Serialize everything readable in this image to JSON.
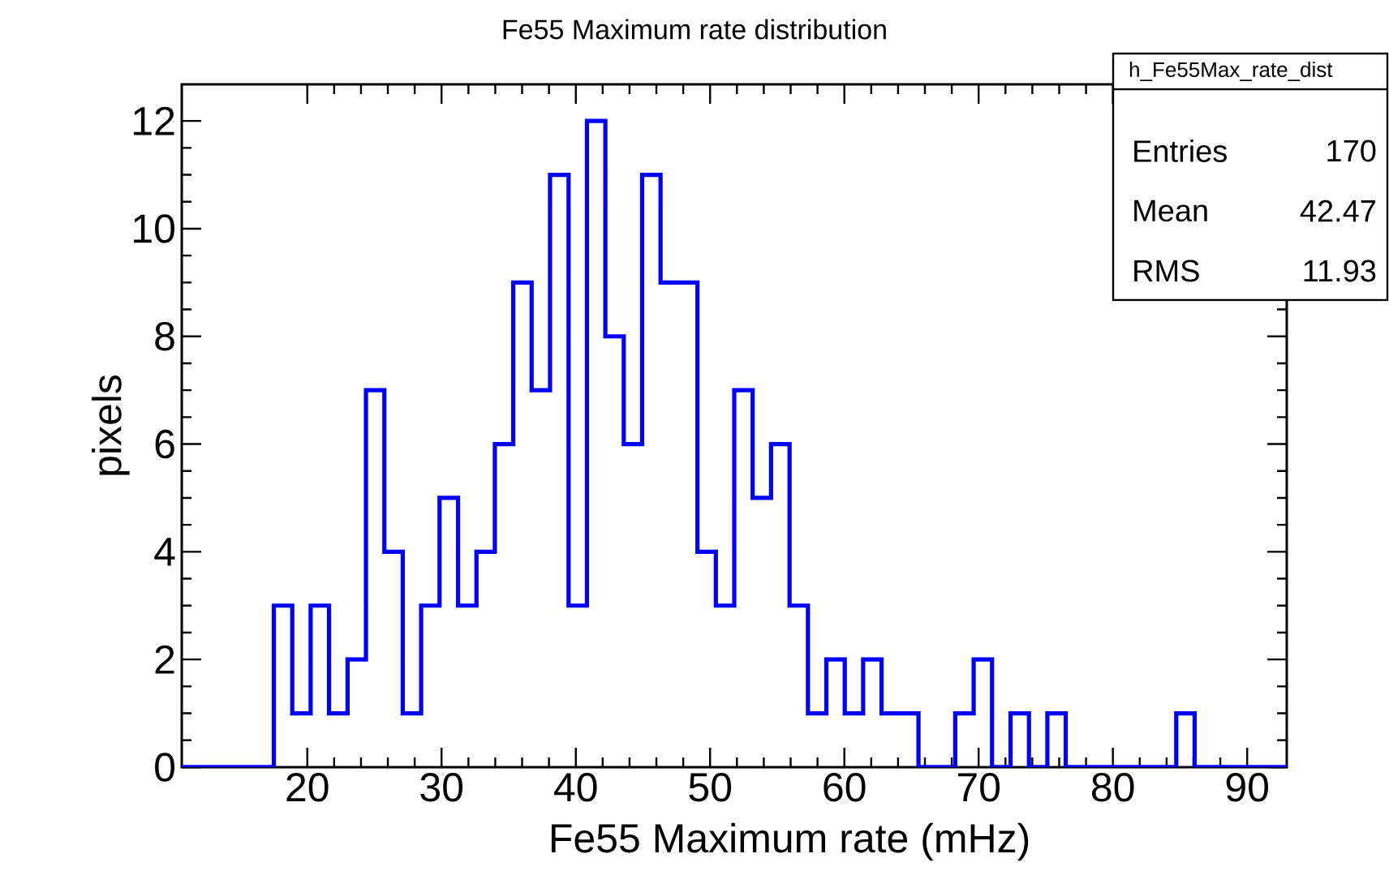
{
  "chart_data": {
    "type": "histogram",
    "title": "Fe55 Maximum rate distribution",
    "xlabel": "Fe55 Maximum rate (mHz)",
    "ylabel": "pixels",
    "bins": [
      10.65,
      12.02,
      13.39,
      14.77,
      16.14,
      17.51,
      18.88,
      20.25,
      21.62,
      23.0,
      24.37,
      25.74,
      27.11,
      28.48,
      29.85,
      31.23,
      32.6,
      33.97,
      35.34,
      36.71,
      38.08,
      39.46,
      40.83,
      42.2,
      43.57,
      44.94,
      46.31,
      47.69,
      49.06,
      50.43,
      51.8,
      53.17,
      54.54,
      55.92,
      57.29,
      58.66,
      60.03,
      61.4,
      62.77,
      64.15,
      65.52,
      66.89,
      68.26,
      69.63,
      71.0,
      72.38,
      73.75,
      75.12,
      76.49,
      77.86,
      79.23,
      80.61,
      81.98,
      83.35,
      84.72,
      86.09,
      87.46,
      88.84,
      90.21,
      91.58,
      92.95
    ],
    "values": [
      0,
      0,
      0,
      0,
      0,
      3,
      1,
      3,
      1,
      2,
      7,
      4,
      1,
      3,
      5,
      3,
      4,
      6,
      9,
      7,
      11,
      3,
      12,
      8,
      6,
      11,
      9,
      9,
      4,
      3,
      7,
      5,
      6,
      3,
      1,
      2,
      1,
      2,
      1,
      1,
      0,
      0,
      1,
      2,
      0,
      1,
      0,
      1,
      0,
      0,
      0,
      0,
      0,
      0,
      1,
      0,
      0,
      0,
      0,
      0
    ],
    "color": "#0000ff",
    "xlim": [
      10.65,
      92.95
    ],
    "ylim": [
      0,
      12.68
    ],
    "xticks": [
      20,
      30,
      40,
      50,
      60,
      70,
      80,
      90
    ],
    "yticks": [
      0,
      2,
      4,
      6,
      8,
      10,
      12
    ],
    "grid": false,
    "annotations": [
      "h_Fe55Max_rate_dist",
      "Entries",
      "170",
      "Mean",
      "42.47",
      "RMS",
      "11.93"
    ]
  }
}
